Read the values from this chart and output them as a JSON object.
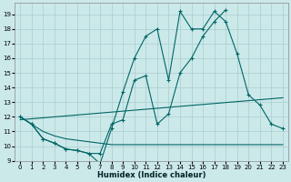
{
  "xlabel": "Humidex (Indice chaleur)",
  "xlim": [
    -0.5,
    23.5
  ],
  "ylim": [
    9,
    19.8
  ],
  "yticks": [
    9,
    10,
    11,
    12,
    13,
    14,
    15,
    16,
    17,
    18,
    19
  ],
  "xticks": [
    0,
    1,
    2,
    3,
    4,
    5,
    6,
    7,
    8,
    9,
    10,
    11,
    12,
    13,
    14,
    15,
    16,
    17,
    18,
    19,
    20,
    21,
    22,
    23
  ],
  "bg_color": "#cce9ea",
  "grid_color": "#aacccc",
  "line_color": "#006666",
  "series1_x": [
    0,
    1,
    2,
    3,
    4,
    5,
    6,
    7,
    8,
    9,
    10,
    11,
    12,
    13,
    14,
    15,
    16,
    17,
    18,
    19,
    20,
    21,
    22,
    23
  ],
  "series1_y": [
    12.0,
    11.5,
    10.5,
    10.2,
    9.8,
    9.7,
    9.5,
    8.8,
    11.2,
    13.7,
    16.0,
    17.5,
    18.0,
    14.5,
    19.2,
    18.0,
    18.0,
    19.2,
    18.5,
    16.3,
    13.5,
    12.8,
    11.5,
    11.2
  ],
  "series2_x": [
    0,
    1,
    2,
    3,
    4,
    5,
    6,
    7,
    8,
    9,
    10,
    11,
    12,
    13,
    14,
    15,
    16,
    17,
    18
  ],
  "series2_y": [
    12.0,
    11.5,
    10.5,
    10.2,
    9.8,
    9.7,
    9.5,
    9.5,
    11.5,
    11.8,
    14.5,
    14.8,
    11.5,
    12.2,
    15.0,
    16.0,
    17.5,
    18.5,
    19.3
  ],
  "flat_line_x": [
    0,
    1,
    2,
    3,
    4,
    5,
    6,
    7,
    8,
    9,
    10,
    11,
    12,
    13,
    14,
    15,
    16,
    17,
    18,
    19,
    20,
    21,
    22,
    23
  ],
  "flat_line_y": [
    12.0,
    11.5,
    11.0,
    10.7,
    10.5,
    10.4,
    10.3,
    10.2,
    10.1,
    10.1,
    10.1,
    10.1,
    10.1,
    10.1,
    10.1,
    10.1,
    10.1,
    10.1,
    10.1,
    10.1,
    10.1,
    10.1,
    10.1,
    10.1
  ],
  "rising_line_x": [
    0,
    23
  ],
  "rising_line_y": [
    11.8,
    13.3
  ]
}
